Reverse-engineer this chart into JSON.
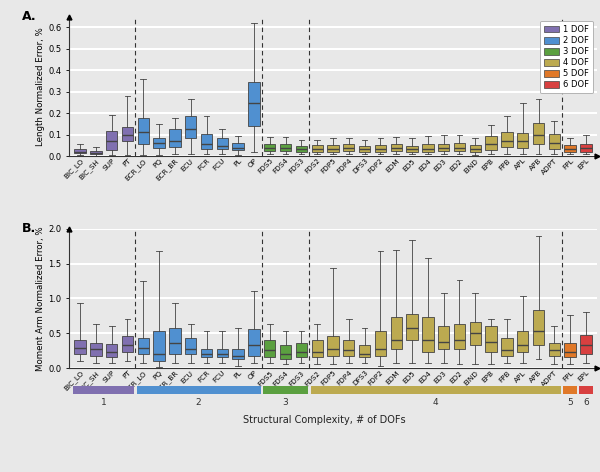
{
  "xlabels_A": [
    "BIC_LO",
    "BIC_SH",
    "SUP",
    "PT",
    "ECR_LO",
    "PQ",
    "ECR_BR",
    "ECU",
    "FCR",
    "FCU",
    "PL",
    "OP",
    "FDS5",
    "FDS4",
    "FDS3",
    "FDS2",
    "FDP5",
    "FDP4",
    "DFS3",
    "FDP2",
    "EDM",
    "ED5",
    "ED4",
    "ED3",
    "ED2",
    "EIND",
    "EPB",
    "FPB",
    "APL",
    "APB",
    "ADPT",
    "FPL",
    "EPL"
  ],
  "dof_colors_list": [
    "#8070B0",
    "#8070B0",
    "#8070B0",
    "#8070B0",
    "#5090D0",
    "#5090D0",
    "#5090D0",
    "#5090D0",
    "#5090D0",
    "#5090D0",
    "#5090D0",
    "#5090D0",
    "#5BA040",
    "#5BA040",
    "#5BA040",
    "#BCAA50",
    "#BCAA50",
    "#BCAA50",
    "#BCAA50",
    "#BCAA50",
    "#BCAA50",
    "#BCAA50",
    "#BCAA50",
    "#BCAA50",
    "#BCAA50",
    "#BCAA50",
    "#BCAA50",
    "#BCAA50",
    "#BCAA50",
    "#BCAA50",
    "#BCAA50",
    "#E07828",
    "#D84040"
  ],
  "panel_A_data": [
    [
      0.003,
      0.012,
      0.02,
      0.032,
      0.055
    ],
    [
      0.002,
      0.008,
      0.016,
      0.025,
      0.042
    ],
    [
      0.004,
      0.03,
      0.07,
      0.115,
      0.19
    ],
    [
      0.004,
      0.068,
      0.1,
      0.135,
      0.28
    ],
    [
      0.004,
      0.058,
      0.11,
      0.175,
      0.36
    ],
    [
      0.004,
      0.038,
      0.06,
      0.085,
      0.15
    ],
    [
      0.008,
      0.042,
      0.072,
      0.125,
      0.175
    ],
    [
      0.008,
      0.082,
      0.128,
      0.185,
      0.265
    ],
    [
      0.008,
      0.032,
      0.058,
      0.105,
      0.185
    ],
    [
      0.008,
      0.032,
      0.048,
      0.085,
      0.125
    ],
    [
      0.004,
      0.028,
      0.038,
      0.062,
      0.095
    ],
    [
      0.018,
      0.142,
      0.248,
      0.345,
      0.62
    ],
    [
      0.008,
      0.024,
      0.038,
      0.056,
      0.088
    ],
    [
      0.008,
      0.024,
      0.038,
      0.058,
      0.088
    ],
    [
      0.008,
      0.018,
      0.032,
      0.048,
      0.075
    ],
    [
      0.008,
      0.018,
      0.032,
      0.052,
      0.075
    ],
    [
      0.008,
      0.018,
      0.035,
      0.052,
      0.085
    ],
    [
      0.008,
      0.022,
      0.038,
      0.058,
      0.086
    ],
    [
      0.008,
      0.018,
      0.032,
      0.048,
      0.075
    ],
    [
      0.008,
      0.018,
      0.032,
      0.052,
      0.082
    ],
    [
      0.008,
      0.022,
      0.038,
      0.058,
      0.088
    ],
    [
      0.008,
      0.018,
      0.032,
      0.048,
      0.086
    ],
    [
      0.008,
      0.018,
      0.032,
      0.055,
      0.092
    ],
    [
      0.008,
      0.022,
      0.038,
      0.058,
      0.096
    ],
    [
      0.008,
      0.022,
      0.038,
      0.062,
      0.096
    ],
    [
      0.004,
      0.018,
      0.032,
      0.052,
      0.082
    ],
    [
      0.008,
      0.028,
      0.055,
      0.092,
      0.145
    ],
    [
      0.008,
      0.042,
      0.072,
      0.112,
      0.185
    ],
    [
      0.008,
      0.038,
      0.068,
      0.108,
      0.245
    ],
    [
      0.008,
      0.058,
      0.098,
      0.152,
      0.265
    ],
    [
      0.008,
      0.032,
      0.062,
      0.102,
      0.162
    ],
    [
      0.008,
      0.018,
      0.032,
      0.052,
      0.086
    ],
    [
      0.008,
      0.018,
      0.038,
      0.058,
      0.096
    ]
  ],
  "panel_B_data": [
    [
      0.1,
      0.2,
      0.29,
      0.4,
      0.93
    ],
    [
      0.08,
      0.18,
      0.27,
      0.36,
      0.63
    ],
    [
      0.08,
      0.16,
      0.23,
      0.34,
      0.6
    ],
    [
      0.1,
      0.23,
      0.33,
      0.46,
      0.7
    ],
    [
      0.08,
      0.2,
      0.29,
      0.43,
      1.25
    ],
    [
      0.02,
      0.1,
      0.2,
      0.53,
      1.68
    ],
    [
      0.08,
      0.2,
      0.36,
      0.58,
      0.93
    ],
    [
      0.08,
      0.2,
      0.28,
      0.43,
      0.63
    ],
    [
      0.08,
      0.16,
      0.2,
      0.28,
      0.53
    ],
    [
      0.08,
      0.16,
      0.2,
      0.28,
      0.53
    ],
    [
      0.03,
      0.13,
      0.18,
      0.28,
      0.58
    ],
    [
      0.08,
      0.18,
      0.33,
      0.56,
      1.1
    ],
    [
      0.08,
      0.16,
      0.26,
      0.4,
      0.63
    ],
    [
      0.06,
      0.13,
      0.2,
      0.33,
      0.53
    ],
    [
      0.08,
      0.16,
      0.23,
      0.36,
      0.53
    ],
    [
      0.06,
      0.16,
      0.23,
      0.4,
      0.63
    ],
    [
      0.06,
      0.18,
      0.28,
      0.46,
      1.43
    ],
    [
      0.08,
      0.18,
      0.26,
      0.4,
      0.7
    ],
    [
      0.08,
      0.16,
      0.2,
      0.33,
      0.58
    ],
    [
      0.03,
      0.18,
      0.28,
      0.53,
      1.68
    ],
    [
      0.08,
      0.28,
      0.4,
      0.73,
      1.7
    ],
    [
      0.08,
      0.4,
      0.58,
      0.78,
      1.83
    ],
    [
      0.08,
      0.23,
      0.4,
      0.73,
      1.58
    ],
    [
      0.08,
      0.28,
      0.38,
      0.6,
      1.08
    ],
    [
      0.06,
      0.28,
      0.4,
      0.63,
      1.26
    ],
    [
      0.06,
      0.33,
      0.5,
      0.66,
      1.08
    ],
    [
      0.06,
      0.23,
      0.38,
      0.6,
      0.7
    ],
    [
      0.08,
      0.18,
      0.26,
      0.43,
      0.7
    ],
    [
      0.08,
      0.23,
      0.33,
      0.53,
      1.03
    ],
    [
      0.13,
      0.33,
      0.53,
      0.83,
      1.9
    ],
    [
      0.06,
      0.18,
      0.26,
      0.36,
      0.6
    ],
    [
      0.06,
      0.16,
      0.23,
      0.36,
      0.76
    ],
    [
      0.08,
      0.2,
      0.33,
      0.48,
      0.8
    ]
  ],
  "dof_vlines": [
    3.5,
    11.5,
    14.5,
    30.5
  ],
  "legend_labels": [
    "1 DOF",
    "2 DOF",
    "3 DOF",
    "4 DOF",
    "5 DOF",
    "6 DOF"
  ],
  "legend_colors": [
    "#8070B0",
    "#5090D0",
    "#5BA040",
    "#BCAA50",
    "#E07828",
    "#D84040"
  ],
  "panel_A_ylim": [
    0,
    0.65
  ],
  "panel_B_ylim": [
    0,
    2.0
  ],
  "panel_A_yticks": [
    0.0,
    0.1,
    0.2,
    0.3,
    0.4,
    0.5,
    0.6
  ],
  "panel_B_yticks": [
    0.0,
    0.5,
    1.0,
    1.5,
    2.0
  ],
  "panel_A_ylabel": "Length Normalized Error, %",
  "panel_B_ylabel": "Moment Arm Normalized Error, %",
  "xlabel": "Structural Complexity, # of DOFs",
  "title_A": "A.",
  "title_B": "B.",
  "bg_color": "#E8E8E8",
  "grid_color": "#FFFFFF",
  "dof_bar_colors": [
    "#8070B0",
    "#5090D0",
    "#5BA040",
    "#BCAA50",
    "#E07828",
    "#D84040"
  ],
  "dof_bar_ranges": [
    [
      0,
      3
    ],
    [
      4,
      11
    ],
    [
      12,
      14
    ],
    [
      15,
      30
    ],
    [
      31,
      31
    ],
    [
      32,
      32
    ]
  ],
  "dof_numbers": [
    "1",
    "2",
    "3",
    "4",
    "5",
    "6"
  ],
  "box_edge_color": "#444444",
  "median_color": "#444444",
  "whisker_color": "#444444"
}
